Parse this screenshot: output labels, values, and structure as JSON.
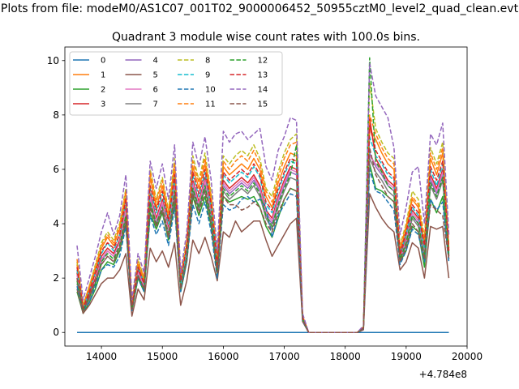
{
  "chart_data": {
    "type": "line",
    "suptitle": "Plots from file: modeM0/AS1C07_001T02_9000006452_50955cztM0_level2_quad_clean.evt",
    "title": "Quadrant 3 module wise count rates with 100.0s bins.",
    "xlabel": "",
    "ylabel": "",
    "x_offset_label": "+4.784e8",
    "xlim": [
      13400,
      20000
    ],
    "ylim": [
      -0.5,
      10.5
    ],
    "xticks": [
      14000,
      15000,
      16000,
      17000,
      18000,
      19000,
      20000
    ],
    "yticks": [
      0,
      2,
      4,
      6,
      8,
      10
    ],
    "legend_location": "upper-left",
    "x": [
      13600,
      13700,
      13800,
      13900,
      14000,
      14100,
      14200,
      14300,
      14400,
      14500,
      14600,
      14700,
      14800,
      14900,
      15000,
      15100,
      15200,
      15300,
      15400,
      15500,
      15600,
      15700,
      15800,
      15900,
      16000,
      16100,
      16200,
      16300,
      16400,
      16500,
      16600,
      16700,
      16800,
      16900,
      17000,
      17100,
      17200,
      17300,
      17400,
      17500,
      17600,
      17700,
      17800,
      17900,
      18000,
      18100,
      18200,
      18300,
      18400,
      18500,
      18600,
      18700,
      18800,
      18900,
      19000,
      19100,
      19200,
      19300,
      19400,
      19500,
      19600,
      19700
    ],
    "series": [
      {
        "name": "0",
        "color": "#1f77b4",
        "dash": "solid",
        "values": [
          0,
          0,
          0,
          0,
          0,
          0,
          0,
          0,
          0,
          0,
          0,
          0,
          0,
          0,
          0,
          0,
          0,
          0,
          0,
          0,
          0,
          0,
          0,
          0,
          0,
          0,
          0,
          0,
          0,
          0,
          0,
          0,
          0,
          0,
          0,
          0,
          0,
          0,
          0,
          0,
          0,
          0,
          0,
          0,
          0,
          0,
          0,
          0,
          0,
          0,
          0,
          0,
          0,
          0,
          0,
          0,
          0,
          0,
          0,
          0,
          0,
          0
        ]
      },
      {
        "name": "1",
        "color": "#ff7f0e",
        "dash": "solid",
        "values": [
          2.5,
          0.9,
          1.6,
          2.3,
          3.1,
          3.5,
          3.2,
          3.8,
          5.0,
          1.0,
          2.5,
          1.9,
          5.7,
          4.6,
          5.4,
          4.2,
          6.0,
          1.9,
          3.2,
          6.1,
          5.3,
          6.2,
          4.8,
          2.6,
          6.1,
          5.8,
          6.0,
          6.2,
          6.0,
          6.4,
          6.0,
          5.0,
          4.6,
          5.5,
          6.1,
          6.6,
          6.5,
          0.6,
          0,
          0,
          0,
          0,
          0,
          0,
          0,
          0,
          0,
          0.2,
          7.5,
          7.1,
          6.6,
          6.2,
          6.0,
          3.0,
          3.8,
          4.9,
          4.6,
          3.3,
          6.4,
          5.8,
          6.6,
          3.0
        ]
      },
      {
        "name": "2",
        "color": "#2ca02c",
        "dash": "solid",
        "values": [
          1.5,
          0.7,
          1.1,
          1.6,
          2.3,
          2.6,
          2.5,
          3.0,
          4.0,
          0.8,
          2.0,
          1.5,
          4.4,
          3.8,
          4.4,
          3.4,
          4.8,
          1.5,
          2.6,
          5.0,
          4.3,
          5.0,
          3.9,
          2.1,
          5.0,
          4.8,
          4.9,
          5.0,
          4.9,
          5.0,
          4.6,
          3.9,
          3.5,
          4.2,
          4.9,
          5.3,
          5.2,
          0.5,
          0,
          0,
          0,
          0,
          0,
          0,
          0,
          0,
          0,
          0.15,
          6.2,
          5.3,
          5.2,
          5.0,
          4.8,
          2.6,
          3.0,
          3.9,
          3.7,
          2.4,
          4.9,
          4.4,
          5.0,
          2.7
        ]
      },
      {
        "name": "3",
        "color": "#d62728",
        "dash": "solid",
        "values": [
          2.2,
          0.8,
          1.4,
          2.0,
          2.8,
          3.1,
          2.9,
          3.4,
          4.6,
          0.9,
          2.3,
          1.7,
          5.1,
          4.2,
          4.9,
          3.8,
          5.5,
          1.8,
          3.0,
          5.6,
          4.8,
          5.7,
          4.4,
          2.4,
          5.6,
          5.3,
          5.5,
          5.7,
          5.5,
          5.8,
          5.4,
          4.5,
          4.2,
          5.0,
          5.6,
          6.1,
          6.0,
          0.55,
          0,
          0,
          0,
          0,
          0,
          0,
          0,
          0,
          0,
          0.18,
          7.9,
          6.4,
          6.0,
          5.6,
          5.4,
          2.8,
          3.5,
          4.5,
          4.2,
          3.0,
          5.8,
          5.3,
          6.0,
          2.8
        ]
      },
      {
        "name": "4",
        "color": "#9467bd",
        "dash": "solid",
        "values": [
          2.0,
          0.8,
          1.3,
          1.9,
          2.6,
          3.0,
          2.8,
          3.3,
          4.4,
          0.9,
          2.2,
          1.7,
          4.9,
          4.0,
          4.7,
          3.7,
          5.3,
          1.7,
          2.9,
          5.4,
          4.6,
          5.5,
          4.2,
          2.3,
          5.4,
          5.1,
          5.3,
          5.5,
          5.3,
          5.6,
          5.2,
          4.3,
          4.0,
          4.8,
          5.4,
          5.9,
          5.8,
          0.5,
          0,
          0,
          0,
          0,
          0,
          0,
          0,
          0,
          0,
          0.17,
          6.6,
          6.1,
          5.8,
          5.4,
          5.2,
          2.7,
          3.3,
          4.3,
          4.0,
          2.9,
          5.6,
          5.1,
          5.8,
          2.8
        ]
      },
      {
        "name": "5",
        "color": "#8c564b",
        "dash": "solid",
        "values": [
          1.6,
          0.7,
          1.0,
          1.4,
          1.8,
          2.0,
          2.0,
          2.3,
          2.9,
          0.6,
          1.6,
          1.2,
          3.1,
          2.6,
          3.0,
          2.4,
          3.3,
          1.0,
          1.9,
          3.4,
          2.9,
          3.5,
          2.8,
          1.9,
          3.7,
          3.5,
          4.1,
          3.7,
          3.9,
          4.1,
          4.1,
          3.4,
          2.8,
          3.2,
          3.6,
          4.0,
          4.2,
          0.4,
          0,
          0,
          0,
          0,
          0,
          0,
          0,
          0,
          0,
          0.1,
          5.1,
          4.6,
          4.2,
          3.9,
          3.7,
          2.3,
          2.6,
          3.3,
          3.1,
          2.0,
          3.9,
          3.8,
          3.9,
          2.0
        ]
      },
      {
        "name": "6",
        "color": "#e377c2",
        "dash": "solid",
        "values": [
          2.1,
          0.8,
          1.3,
          1.9,
          2.7,
          3.0,
          2.8,
          3.3,
          4.5,
          0.9,
          2.2,
          1.7,
          5.0,
          4.1,
          4.8,
          3.7,
          5.4,
          1.7,
          2.9,
          5.5,
          4.7,
          5.6,
          4.3,
          2.3,
          5.5,
          5.2,
          5.4,
          5.6,
          5.4,
          5.7,
          5.3,
          4.4,
          4.1,
          4.9,
          5.5,
          6.0,
          5.9,
          0.5,
          0,
          0,
          0,
          0,
          0,
          0,
          0,
          0,
          0,
          0.17,
          6.5,
          6.2,
          5.9,
          5.5,
          5.3,
          2.7,
          3.4,
          4.4,
          4.1,
          2.9,
          5.7,
          5.2,
          5.9,
          2.8
        ]
      },
      {
        "name": "7",
        "color": "#7f7f7f",
        "dash": "solid",
        "values": [
          1.8,
          0.8,
          1.2,
          1.8,
          2.5,
          2.8,
          2.6,
          3.1,
          4.2,
          0.85,
          2.1,
          1.6,
          4.7,
          3.9,
          4.5,
          3.5,
          5.1,
          1.6,
          2.8,
          5.2,
          4.5,
          5.3,
          4.1,
          2.2,
          5.2,
          4.9,
          5.1,
          5.3,
          5.1,
          5.4,
          5.0,
          4.2,
          3.8,
          4.6,
          5.2,
          5.7,
          5.6,
          0.5,
          0,
          0,
          0,
          0,
          0,
          0,
          0,
          0,
          0,
          0.16,
          6.4,
          5.9,
          5.6,
          5.2,
          5.0,
          2.6,
          3.2,
          4.2,
          3.9,
          2.8,
          5.4,
          4.9,
          5.6,
          2.7
        ]
      },
      {
        "name": "8",
        "color": "#bcbd22",
        "dash": "dashed",
        "values": [
          2.6,
          1.0,
          1.7,
          2.5,
          3.3,
          3.7,
          3.4,
          4.0,
          5.3,
          1.1,
          2.7,
          2.0,
          6.0,
          4.9,
          5.7,
          4.5,
          6.4,
          2.0,
          3.4,
          6.5,
          5.6,
          6.6,
          5.1,
          2.7,
          6.5,
          6.2,
          6.5,
          6.7,
          6.5,
          6.9,
          6.4,
          5.3,
          5.0,
          5.9,
          6.6,
          7.1,
          7.3,
          0.6,
          0,
          0,
          0,
          0,
          0,
          0,
          0,
          0,
          0,
          0.2,
          9.2,
          7.5,
          7.0,
          6.6,
          6.4,
          3.2,
          4.0,
          5.2,
          4.9,
          3.5,
          6.8,
          6.2,
          7.0,
          3.2
        ]
      },
      {
        "name": "9",
        "color": "#17becf",
        "dash": "dashed",
        "values": [
          2.3,
          0.9,
          1.5,
          2.2,
          2.9,
          3.3,
          3.0,
          3.6,
          4.8,
          1.0,
          2.4,
          1.8,
          5.3,
          4.4,
          5.1,
          4.0,
          5.7,
          1.8,
          3.1,
          5.8,
          5.0,
          5.9,
          4.6,
          2.5,
          5.8,
          5.5,
          5.7,
          5.9,
          5.7,
          6.1,
          5.7,
          4.7,
          4.4,
          5.2,
          5.8,
          6.3,
          6.2,
          0.55,
          0,
          0,
          0,
          0,
          0,
          0,
          0,
          0,
          0,
          0.18,
          7.2,
          6.5,
          6.2,
          5.8,
          5.6,
          2.9,
          3.6,
          4.6,
          4.3,
          3.1,
          6.0,
          5.4,
          6.2,
          2.9
        ]
      },
      {
        "name": "10",
        "color": "#1f77b4",
        "dash": "dashed",
        "values": [
          1.7,
          0.8,
          1.1,
          1.7,
          2.3,
          2.5,
          2.4,
          2.8,
          3.9,
          0.8,
          2.0,
          1.5,
          4.3,
          3.6,
          4.1,
          3.2,
          4.6,
          1.5,
          2.6,
          4.7,
          4.0,
          4.8,
          3.7,
          2.0,
          4.7,
          4.5,
          4.6,
          4.9,
          5.0,
          4.8,
          4.9,
          4.6,
          3.5,
          4.3,
          4.7,
          5.1,
          5.0,
          0.45,
          0,
          0,
          0,
          0,
          0,
          0,
          0,
          0,
          0,
          0.15,
          6.0,
          5.2,
          5.1,
          4.8,
          4.5,
          2.5,
          3.0,
          3.8,
          3.6,
          2.6,
          4.9,
          4.5,
          4.8,
          2.6
        ]
      },
      {
        "name": "11",
        "color": "#ff7f0e",
        "dash": "dashed",
        "values": [
          2.7,
          1.0,
          1.7,
          2.4,
          3.2,
          3.6,
          3.3,
          3.9,
          5.2,
          1.0,
          2.6,
          2.0,
          5.9,
          4.8,
          5.6,
          4.4,
          6.2,
          2.0,
          3.3,
          6.3,
          5.5,
          6.4,
          5.0,
          2.7,
          6.3,
          6.0,
          6.3,
          6.5,
          6.3,
          6.7,
          6.2,
          5.2,
          4.8,
          5.7,
          6.4,
          6.9,
          7.0,
          0.6,
          0,
          0,
          0,
          0,
          0,
          0,
          0,
          0,
          0,
          0.2,
          8.0,
          7.3,
          6.8,
          6.4,
          6.2,
          3.1,
          3.9,
          5.0,
          4.7,
          3.4,
          6.6,
          6.0,
          6.8,
          3.1
        ]
      },
      {
        "name": "12",
        "color": "#2ca02c",
        "dash": "dashed",
        "values": [
          1.9,
          0.8,
          1.3,
          1.8,
          2.6,
          2.9,
          2.7,
          3.2,
          4.3,
          0.85,
          2.1,
          1.6,
          4.8,
          4.0,
          4.6,
          3.6,
          5.2,
          1.6,
          2.8,
          5.3,
          4.6,
          5.4,
          4.2,
          2.2,
          5.3,
          5.0,
          5.2,
          5.4,
          5.2,
          5.5,
          5.1,
          4.3,
          3.9,
          4.7,
          5.3,
          5.8,
          6.9,
          0.5,
          0,
          0,
          0,
          0,
          0,
          0,
          0,
          0,
          0,
          0.17,
          10.1,
          6.3,
          5.9,
          5.4,
          5.2,
          2.7,
          3.3,
          4.3,
          4.0,
          2.8,
          5.5,
          5.0,
          5.7,
          2.8
        ]
      },
      {
        "name": "13",
        "color": "#d62728",
        "dash": "dashed",
        "values": [
          2.4,
          0.9,
          1.5,
          2.2,
          3.0,
          3.3,
          3.1,
          3.6,
          4.9,
          1.0,
          2.4,
          1.8,
          5.4,
          4.5,
          5.2,
          4.1,
          5.8,
          1.9,
          3.2,
          5.9,
          5.1,
          6.0,
          4.7,
          2.5,
          5.9,
          5.6,
          5.8,
          6.0,
          5.8,
          6.2,
          5.8,
          4.8,
          4.5,
          5.3,
          5.9,
          6.4,
          6.3,
          0.55,
          0,
          0,
          0,
          0,
          0,
          0,
          0,
          0,
          0,
          0.19,
          7.6,
          6.7,
          6.3,
          5.9,
          5.7,
          2.9,
          3.7,
          4.7,
          4.4,
          3.2,
          6.1,
          5.6,
          6.3,
          3.0
        ]
      },
      {
        "name": "14",
        "color": "#9467bd",
        "dash": "dashed",
        "values": [
          3.2,
          1.2,
          2.0,
          2.8,
          3.7,
          4.4,
          3.6,
          4.3,
          5.8,
          1.2,
          2.9,
          2.2,
          6.3,
          5.3,
          6.2,
          4.9,
          6.9,
          2.2,
          3.7,
          7.0,
          6.1,
          7.2,
          5.6,
          3.0,
          7.4,
          7.0,
          7.3,
          7.4,
          7.1,
          7.3,
          7.5,
          6.1,
          5.6,
          6.7,
          7.2,
          7.9,
          7.8,
          0.7,
          0,
          0,
          0,
          0,
          0,
          0,
          0,
          0,
          0,
          0.25,
          9.9,
          8.7,
          8.3,
          7.9,
          6.8,
          3.6,
          4.6,
          5.9,
          6.1,
          4.0,
          7.3,
          6.9,
          7.7,
          3.6
        ]
      },
      {
        "name": "15",
        "color": "#8c564b",
        "dash": "dashed",
        "values": [
          2.0,
          0.8,
          1.3,
          1.9,
          2.5,
          2.8,
          2.6,
          3.1,
          4.1,
          0.85,
          2.1,
          1.6,
          4.6,
          3.9,
          4.5,
          3.5,
          5.0,
          1.6,
          2.7,
          5.1,
          4.4,
          5.2,
          4.0,
          2.2,
          5.0,
          4.7,
          4.7,
          4.5,
          4.6,
          4.8,
          4.6,
          4.0,
          3.7,
          4.4,
          4.9,
          5.3,
          5.2,
          0.5,
          0,
          0,
          0,
          0,
          0,
          0,
          0,
          0,
          0,
          0.16,
          6.8,
          5.8,
          5.4,
          5.0,
          4.8,
          2.6,
          3.1,
          4.0,
          3.7,
          2.7,
          4.7,
          4.5,
          4.3,
          2.7
        ]
      }
    ]
  }
}
